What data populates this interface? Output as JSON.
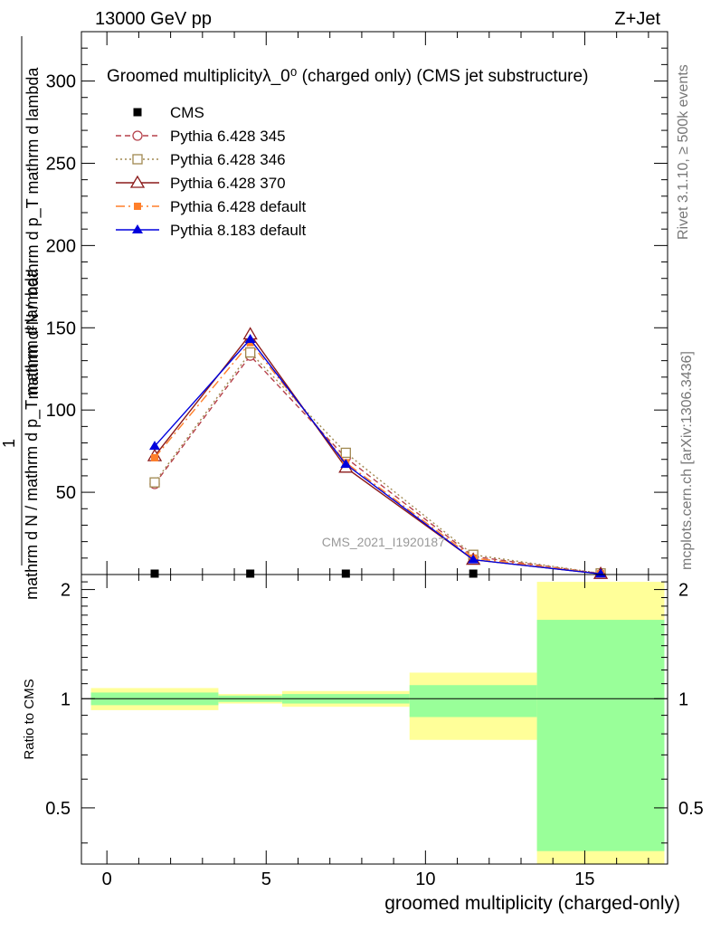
{
  "header": {
    "left": "13000 GeV pp",
    "right": "Z+Jet"
  },
  "side_labels": {
    "rivet": "Rivet 3.1.10, ≥ 500k events",
    "mcplots": "mcplots.cern.ch [arXiv:1306.3436]"
  },
  "watermark": "CMS_2021_I1920187",
  "chart_data": [
    {
      "type": "line",
      "title": "Groomed multiplicityλ_0⁰ (charged only) (CMS jet substructure)",
      "ylabel_top": "1",
      "ylabel_bottom": "mathrm d N / mathrm d p_T mathrm d lambda",
      "ylabel_main": "mathrm d²N / mathrm d p_T mathrm d lambda",
      "xlim": [
        -0.8,
        17.6
      ],
      "ylim": [
        0,
        330
      ],
      "yticks": [
        50,
        100,
        150,
        200,
        250,
        300
      ],
      "ytick_labels": [
        "50",
        "100",
        "150",
        "200",
        "250",
        "300"
      ],
      "legend_position": "top-left",
      "series": [
        {
          "name": "CMS",
          "marker": "square",
          "color": "#000000",
          "dash": "none",
          "x": [
            1.5,
            4.5,
            7.5,
            11.5,
            15.5
          ],
          "y": [
            0.5,
            0.5,
            0.5,
            0.5,
            0.5
          ]
        },
        {
          "name": "Pythia 6.428 345",
          "marker": "circle-open",
          "color": "#b5404a",
          "dash": "6,4",
          "x": [
            1.5,
            4.5,
            7.5,
            11.5,
            15.5
          ],
          "y": [
            55,
            133,
            71,
            11,
            0.6
          ]
        },
        {
          "name": "Pythia 6.428 346",
          "marker": "square-open",
          "color": "#a08850",
          "dash": "2,3",
          "x": [
            1.5,
            4.5,
            7.5,
            11.5,
            15.5
          ],
          "y": [
            56,
            135,
            74,
            12,
            0.7
          ]
        },
        {
          "name": "Pythia 6.428 370",
          "marker": "triangle-open",
          "color": "#8b1a1a",
          "dash": "none",
          "x": [
            1.5,
            4.5,
            7.5,
            11.5,
            15.5
          ],
          "y": [
            72,
            146,
            65,
            9,
            0.4
          ]
        },
        {
          "name": "Pythia 6.428 default",
          "marker": "square-filled",
          "color": "#ff7f2a",
          "dash": "10,4,2,4",
          "x": [
            1.5,
            4.5,
            7.5,
            11.5,
            15.5
          ],
          "y": [
            71,
            141,
            68,
            10,
            0.5
          ]
        },
        {
          "name": "Pythia 8.183 default",
          "marker": "triangle-filled",
          "color": "#0000dd",
          "dash": "none",
          "x": [
            1.5,
            4.5,
            7.5,
            11.5,
            15.5
          ],
          "y": [
            78,
            143,
            67,
            9,
            0.4
          ]
        }
      ]
    },
    {
      "type": "area",
      "ylabel": "Ratio to CMS",
      "xlabel": "groomed multiplicity (charged-only)",
      "xlim": [
        -0.8,
        17.6
      ],
      "ylim": [
        0.35,
        2.2
      ],
      "xticks": [
        0,
        5,
        10,
        15
      ],
      "xtick_labels": [
        "0",
        "5",
        "10",
        "15"
      ],
      "yticks": [
        0.5,
        1,
        2
      ],
      "ytick_labels": [
        "0.5",
        "1",
        "2"
      ],
      "reference_line": 1,
      "bins": [
        {
          "x_low": -0.5,
          "x_high": 3.5,
          "stat_low": 0.96,
          "stat_high": 1.04,
          "total_low": 0.93,
          "total_high": 1.07
        },
        {
          "x_low": 3.5,
          "x_high": 5.5,
          "stat_low": 0.98,
          "stat_high": 1.02,
          "total_low": 0.97,
          "total_high": 1.03
        },
        {
          "x_low": 5.5,
          "x_high": 9.5,
          "stat_low": 0.97,
          "stat_high": 1.03,
          "total_low": 0.95,
          "total_high": 1.05
        },
        {
          "x_low": 9.5,
          "x_high": 13.5,
          "stat_low": 0.89,
          "stat_high": 1.09,
          "total_low": 0.77,
          "total_high": 1.18
        },
        {
          "x_low": 13.5,
          "x_high": 17.5,
          "stat_low": 0.38,
          "stat_high": 1.65,
          "total_low": 0.33,
          "total_high": 2.1
        }
      ]
    }
  ]
}
